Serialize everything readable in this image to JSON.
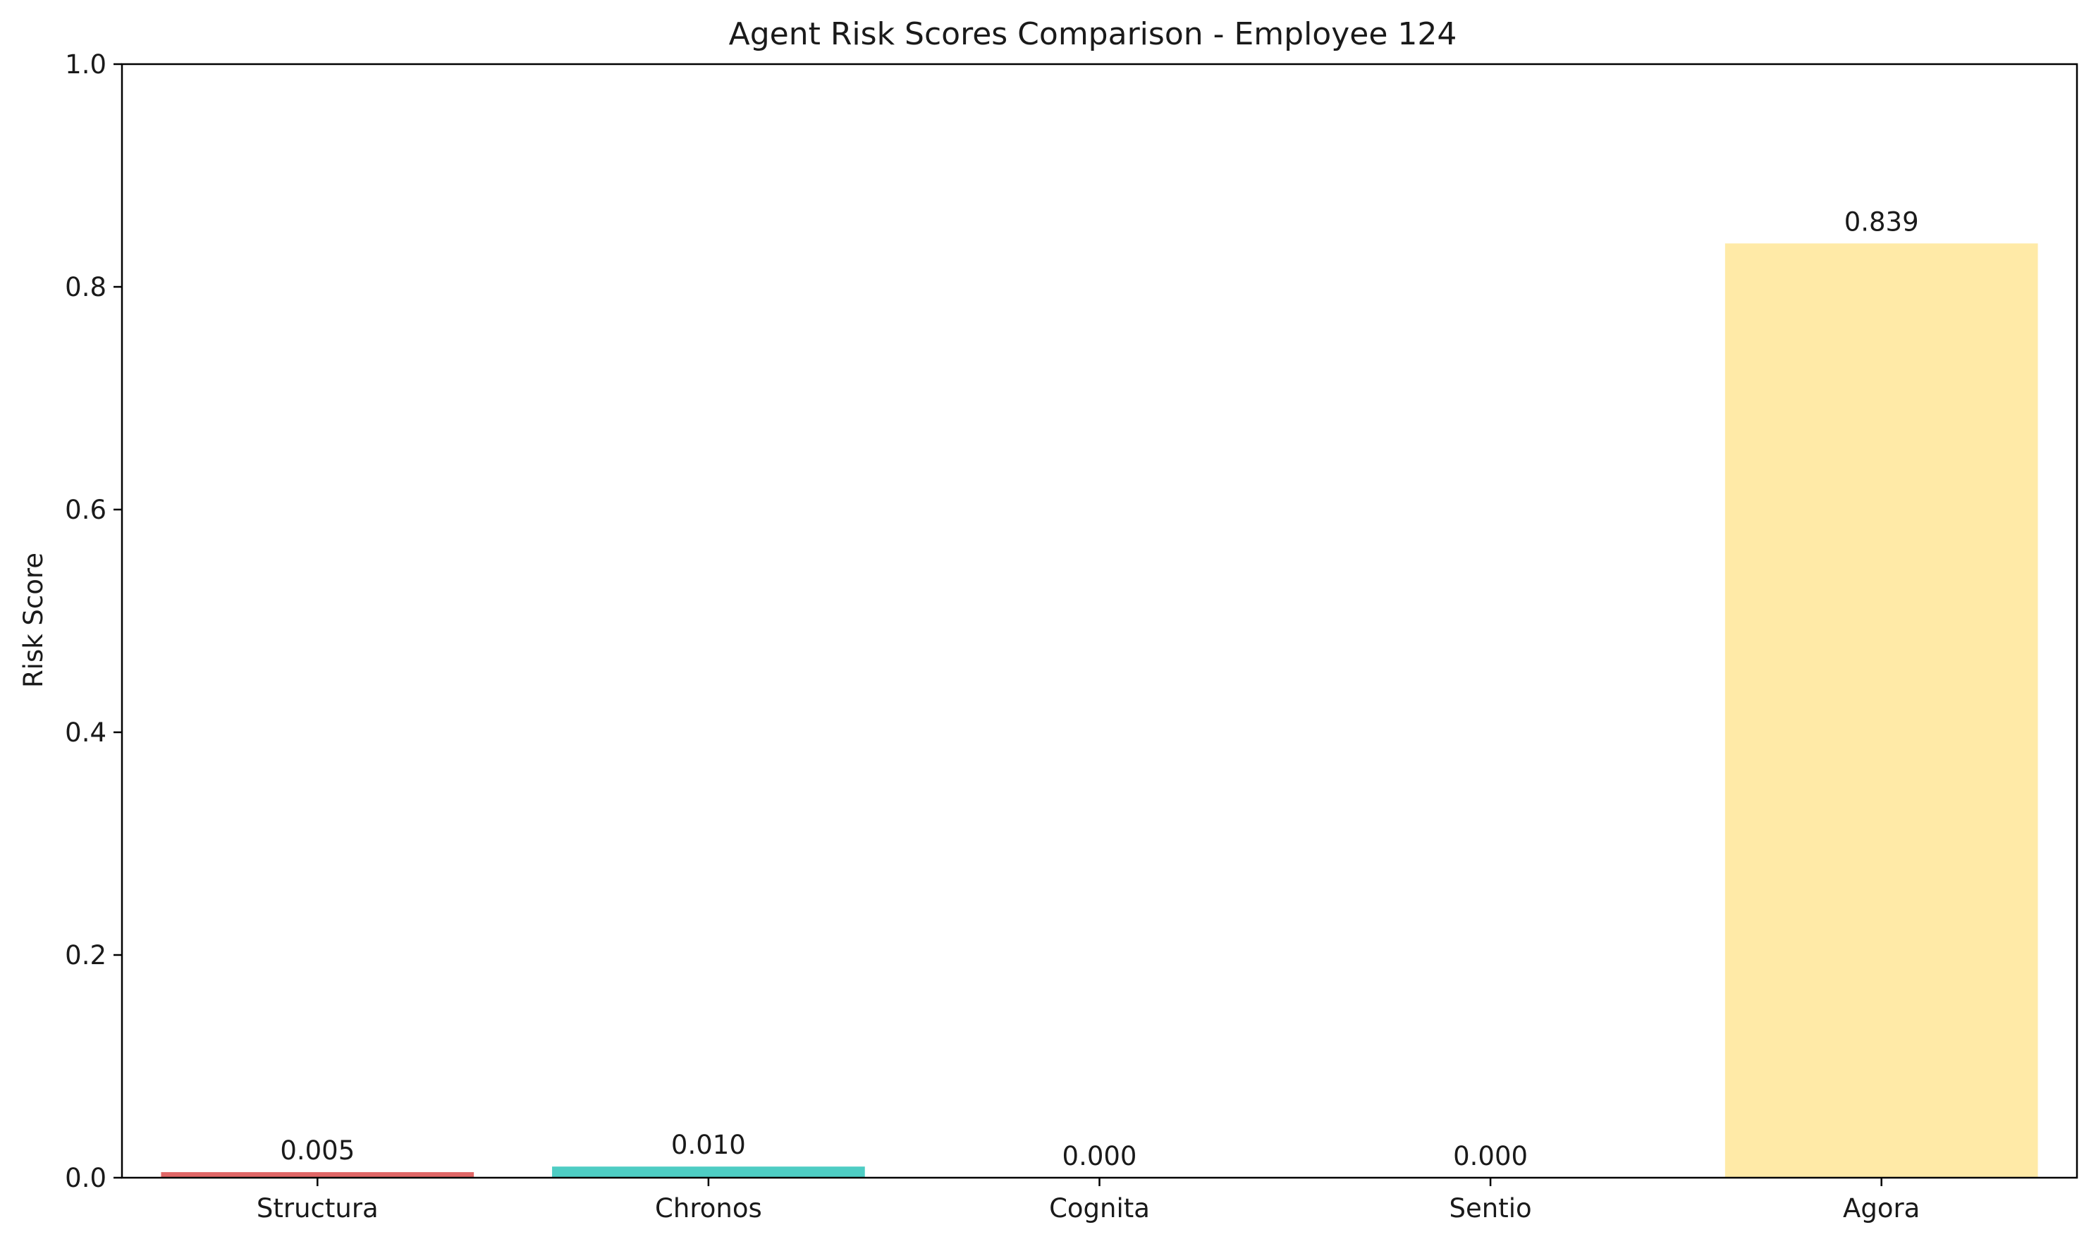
{
  "chart_data": {
    "type": "bar",
    "title": "Agent Risk Scores Comparison - Employee 124",
    "xlabel": "",
    "ylabel": "Risk Score",
    "categories": [
      "Structura",
      "Chronos",
      "Cognita",
      "Sentio",
      "Agora"
    ],
    "values": [
      0.005,
      0.01,
      0.0,
      0.0,
      0.839
    ],
    "value_labels": [
      "0.005",
      "0.010",
      "0.000",
      "0.000",
      "0.839"
    ],
    "colors": [
      "#e06666",
      "#4ecdc4",
      "#45b7d1",
      "#96ceb4",
      "#ffeaa7"
    ],
    "ylim": [
      0,
      1.0
    ],
    "yticks": [
      0.0,
      0.2,
      0.4,
      0.6,
      0.8,
      1.0
    ],
    "ytick_labels": [
      "0.0",
      "0.2",
      "0.4",
      "0.6",
      "0.8",
      "1.0"
    ],
    "grid": false,
    "legend": "none"
  }
}
